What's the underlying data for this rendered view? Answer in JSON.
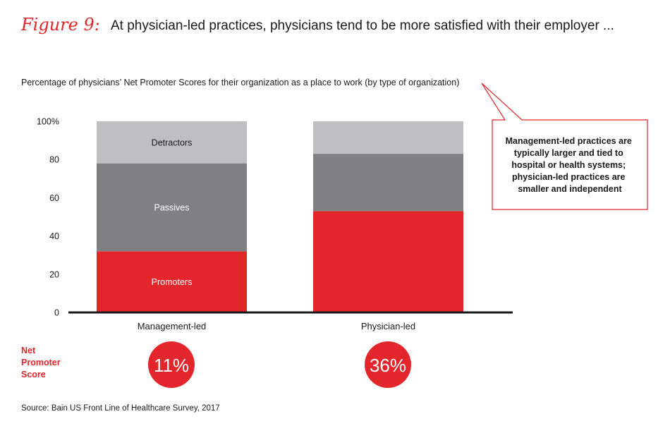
{
  "figure_label": "Figure 9:",
  "title": "At physician-led practices, physicians tend to be more satisfied with their employer ...",
  "subtitle": "Percentage of physicians’ Net Promoter Scores for their organization as a place to work (by type of organization)",
  "callout": {
    "lines": [
      "Management-led practices are",
      "typically larger and tied to",
      "hospital or health systems;",
      "physician-led practices are",
      "smaller and independent"
    ]
  },
  "nps": {
    "label_lines": [
      "Net",
      "Promoter",
      "Score"
    ],
    "values": [
      "11%",
      "36%"
    ]
  },
  "source": "Source: Bain US Front Line of Healthcare Survey, 2017",
  "colors": {
    "accent": "#e3262b",
    "passives": "#808083",
    "detractors": "#bfbfc1",
    "axis": "#1a1a1a"
  },
  "chart_data": {
    "type": "bar",
    "stacked": true,
    "categories": [
      "Management-led",
      "Physician-led"
    ],
    "series": [
      {
        "name": "Promoters",
        "values": [
          32,
          53
        ],
        "color": "#e3262b"
      },
      {
        "name": "Passives",
        "values": [
          46,
          30
        ],
        "color": "#808083"
      },
      {
        "name": "Detractors",
        "values": [
          22,
          17
        ],
        "color": "#bfbfc1"
      }
    ],
    "segment_labels_shown_for": [
      "Management-led"
    ],
    "yticks": [
      "0",
      "20",
      "40",
      "60",
      "80",
      "100%"
    ],
    "ytick_values": [
      0,
      20,
      40,
      60,
      80,
      100
    ],
    "ylim": [
      0,
      100
    ],
    "grid": false,
    "legend": "none"
  }
}
